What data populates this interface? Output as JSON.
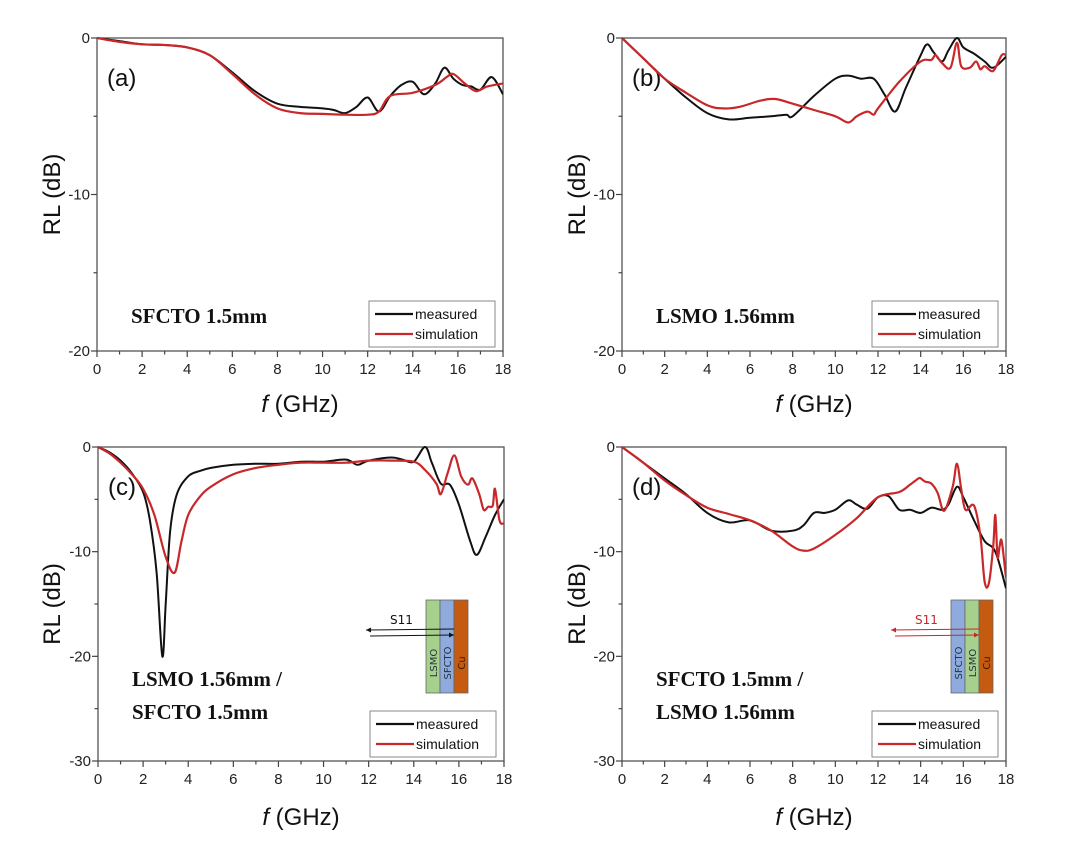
{
  "figure": {
    "legend": {
      "measured": "measured",
      "simulation": "simulation"
    },
    "colors": {
      "measured": "#111111",
      "simulation": "#c8282a",
      "lsmo_layer": "#a8d08d",
      "sfcto_layer": "#8faadc",
      "cu_layer": "#c55a11"
    }
  },
  "chart_data": [
    {
      "type": "line",
      "panel_label": "(a)",
      "sample_label": [
        "SFCTO 1.5mm"
      ],
      "xlabel_italic": "f",
      "xlabel": " (GHz)",
      "ylabel": "RL (dB)",
      "xlim": [
        0,
        18
      ],
      "ylim": [
        -20,
        0
      ],
      "xticks": [
        0,
        2,
        4,
        6,
        8,
        10,
        12,
        14,
        16,
        18
      ],
      "yticks": [
        0,
        -10,
        -20
      ],
      "legend_position": "bottom-right",
      "series": [
        {
          "name": "measured",
          "x": [
            0,
            1,
            2,
            3,
            4,
            5,
            6,
            7,
            8,
            9,
            10,
            10.5,
            11,
            11.5,
            12,
            12.5,
            13,
            13.5,
            14,
            14.5,
            15,
            15.4,
            15.8,
            16.2,
            16.6,
            17,
            17.5,
            18
          ],
          "y": [
            0,
            -0.2,
            -0.4,
            -0.45,
            -0.6,
            -1.1,
            -2.2,
            -3.4,
            -4.2,
            -4.4,
            -4.5,
            -4.6,
            -4.8,
            -4.4,
            -3.8,
            -4.7,
            -3.7,
            -3.0,
            -2.8,
            -3.6,
            -2.9,
            -1.9,
            -2.6,
            -3.0,
            -3.1,
            -3.3,
            -2.5,
            -3.6
          ]
        },
        {
          "name": "simulation",
          "x": [
            0,
            1,
            2,
            3,
            4,
            5,
            6,
            7,
            8,
            9,
            10,
            11,
            12,
            12.5,
            13,
            14,
            15,
            15.5,
            15.8,
            16.3,
            16.8,
            17.3,
            18
          ],
          "y": [
            0,
            -0.25,
            -0.4,
            -0.45,
            -0.6,
            -1.1,
            -2.3,
            -3.6,
            -4.5,
            -4.8,
            -4.85,
            -4.9,
            -4.9,
            -4.7,
            -3.7,
            -3.5,
            -3.0,
            -2.5,
            -2.3,
            -2.9,
            -3.4,
            -3.1,
            -2.9
          ]
        }
      ]
    },
    {
      "type": "line",
      "panel_label": "(b)",
      "sample_label": [
        "LSMO 1.56mm"
      ],
      "xlabel_italic": "f",
      "xlabel": " (GHz)",
      "ylabel": "RL (dB)",
      "xlim": [
        0,
        18
      ],
      "ylim": [
        -20,
        0
      ],
      "xticks": [
        0,
        2,
        4,
        6,
        8,
        10,
        12,
        14,
        16,
        18
      ],
      "yticks": [
        0,
        -10,
        -20
      ],
      "legend_position": "bottom-right",
      "series": [
        {
          "name": "measured",
          "x": [
            0,
            1,
            2,
            3,
            4,
            5,
            6,
            7,
            7.7,
            8,
            9,
            10,
            10.6,
            11.2,
            11.8,
            12.3,
            12.8,
            13.3,
            14,
            14.3,
            14.6,
            15,
            15.3,
            15.7,
            16,
            16.5,
            17,
            17.4,
            18
          ],
          "y": [
            0,
            -1.3,
            -2.6,
            -3.8,
            -4.8,
            -5.2,
            -5.1,
            -5.0,
            -4.9,
            -5.0,
            -3.7,
            -2.6,
            -2.4,
            -2.6,
            -2.6,
            -3.6,
            -4.7,
            -3.2,
            -1.1,
            -0.4,
            -0.9,
            -1.5,
            -0.8,
            0,
            -0.6,
            -1.0,
            -1.5,
            -1.9,
            -1.2
          ]
        },
        {
          "name": "simulation",
          "x": [
            0,
            1,
            2,
            3,
            4,
            4.7,
            5.5,
            6.5,
            7.2,
            8,
            9,
            10,
            10.6,
            11,
            11.5,
            11.8,
            12,
            13,
            14,
            14.5,
            14.7,
            15,
            15.4,
            15.7,
            15.9,
            16.3,
            16.6,
            16.8,
            17,
            17.4,
            17.8,
            18
          ],
          "y": [
            0,
            -1.3,
            -2.6,
            -3.5,
            -4.3,
            -4.5,
            -4.4,
            -4.0,
            -3.9,
            -4.2,
            -4.6,
            -5.0,
            -5.4,
            -5.0,
            -4.7,
            -4.9,
            -4.5,
            -2.8,
            -1.5,
            -1.4,
            -1.1,
            -1.6,
            -1.9,
            -0.3,
            -1.8,
            -1.9,
            -1.5,
            -2.0,
            -1.8,
            -2.1,
            -1.1,
            -1.1
          ]
        }
      ]
    },
    {
      "type": "line",
      "panel_label": "(c)",
      "sample_label": [
        "LSMO 1.56mm /",
        "SFCTO 1.5mm"
      ],
      "xlabel_italic": "f",
      "xlabel": " (GHz)",
      "ylabel": "RL (dB)",
      "xlim": [
        0,
        18
      ],
      "ylim": [
        -30,
        0
      ],
      "xticks": [
        0,
        2,
        4,
        6,
        8,
        10,
        12,
        14,
        16,
        18
      ],
      "yticks": [
        0,
        -10,
        -20,
        -30
      ],
      "legend_position": "bottom-right",
      "inset": {
        "layers": [
          "LSMO",
          "SFCTO",
          "Cu"
        ],
        "label": "S11",
        "arrow_color": "measured"
      },
      "series": [
        {
          "name": "measured",
          "x": [
            0,
            0.5,
            1,
            1.5,
            2,
            2.3,
            2.6,
            2.85,
            3.0,
            3.2,
            3.5,
            4,
            4.5,
            5,
            6,
            7,
            8,
            9,
            10,
            11,
            11.5,
            12,
            13,
            13.5,
            14,
            14.5,
            14.8,
            15.2,
            15.6,
            16,
            16.5,
            16.8,
            17.2,
            17.6,
            18
          ],
          "y": [
            0,
            -0.5,
            -1.3,
            -2.5,
            -4.3,
            -7,
            -12,
            -20,
            -15,
            -8,
            -4.5,
            -2.8,
            -2.3,
            -2.0,
            -1.7,
            -1.6,
            -1.6,
            -1.4,
            -1.4,
            -1.2,
            -1.7,
            -1.3,
            -1.0,
            -1.2,
            -1.4,
            0,
            -1.5,
            -3.5,
            -3.6,
            -5.5,
            -9,
            -10.3,
            -8.5,
            -6.5,
            -5.0
          ]
        },
        {
          "name": "simulation",
          "x": [
            0,
            0.5,
            1,
            1.5,
            2,
            2.5,
            3.0,
            3.4,
            3.7,
            4,
            4.5,
            5,
            6,
            7,
            8,
            9,
            10,
            11,
            12,
            13,
            14,
            14.5,
            15,
            15.2,
            15.5,
            15.8,
            16.1,
            16.4,
            16.6,
            16.9,
            17.1,
            17.3,
            17.5,
            17.6,
            17.8,
            18
          ],
          "y": [
            0,
            -0.6,
            -1.5,
            -2.6,
            -4.0,
            -6.5,
            -10.5,
            -12,
            -9,
            -6.5,
            -4.8,
            -3.8,
            -2.6,
            -2.0,
            -1.7,
            -1.5,
            -1.5,
            -1.5,
            -1.3,
            -1.3,
            -1.4,
            -2.2,
            -3.5,
            -4.5,
            -2.5,
            -0.8,
            -2.8,
            -3.6,
            -3.0,
            -4.5,
            -6.0,
            -5.7,
            -5.6,
            -4.0,
            -7.0,
            -7.3
          ]
        }
      ]
    },
    {
      "type": "line",
      "panel_label": "(d)",
      "sample_label": [
        "SFCTO 1.5mm /",
        "LSMO 1.56mm"
      ],
      "xlabel_italic": "f",
      "xlabel": " (GHz)",
      "ylabel": "RL (dB)",
      "xlim": [
        0,
        18
      ],
      "ylim": [
        -30,
        0
      ],
      "xticks": [
        0,
        2,
        4,
        6,
        8,
        10,
        12,
        14,
        16,
        18
      ],
      "yticks": [
        0,
        -10,
        -20,
        -30
      ],
      "legend_position": "bottom-right",
      "inset": {
        "layers": [
          "SFCTO",
          "LSMO",
          "Cu"
        ],
        "label": "S11",
        "arrow_color": "simulation"
      },
      "series": [
        {
          "name": "measured",
          "x": [
            0,
            1,
            2,
            3,
            4,
            5,
            6,
            7,
            8,
            8.5,
            9,
            9.5,
            10,
            10.6,
            11,
            11.5,
            12,
            12.5,
            13,
            13.5,
            14,
            14.5,
            15,
            15.3,
            15.7,
            16,
            16.5,
            17,
            17.5,
            18
          ],
          "y": [
            0,
            -1.5,
            -3.0,
            -4.5,
            -6.3,
            -7.2,
            -7.0,
            -8.0,
            -8.0,
            -7.5,
            -6.3,
            -6.3,
            -6.0,
            -5.1,
            -5.5,
            -5.9,
            -4.8,
            -4.7,
            -6.0,
            -6.0,
            -6.3,
            -5.8,
            -6.0,
            -5.5,
            -3.8,
            -4.8,
            -7.0,
            -9.0,
            -10,
            -13.5
          ]
        },
        {
          "name": "simulation",
          "x": [
            0,
            1,
            2,
            3,
            4,
            5,
            6,
            7,
            8,
            8.5,
            9,
            10,
            11,
            12,
            13,
            13.5,
            13.9,
            14.0,
            14.2,
            14.5,
            14.8,
            15.1,
            15.5,
            15.7,
            15.9,
            16.1,
            16.5,
            16.8,
            17.0,
            17.2,
            17.4,
            17.5,
            17.6,
            17.7,
            17.8,
            18
          ],
          "y": [
            0,
            -1.5,
            -3.2,
            -4.6,
            -5.8,
            -6.4,
            -7.0,
            -8.0,
            -9.5,
            -9.9,
            -9.7,
            -8.4,
            -6.8,
            -4.8,
            -4.3,
            -3.6,
            -3.0,
            -3.0,
            -3.3,
            -3.5,
            -4.4,
            -6.1,
            -3.8,
            -1.6,
            -4.0,
            -6.0,
            -5.6,
            -8.5,
            -12.9,
            -13.0,
            -9.5,
            -6.5,
            -10.5,
            -9.5,
            -9.0,
            -12.5
          ]
        }
      ]
    }
  ]
}
